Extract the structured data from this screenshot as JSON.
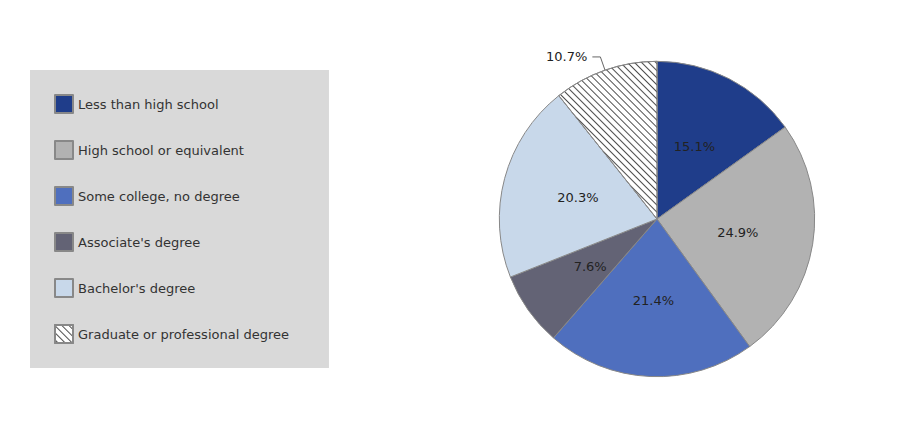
{
  "chart_data": {
    "type": "pie",
    "categories": [
      "Less than high school",
      "High school or equivalent",
      "Some college, no degree",
      "Associate's degree",
      "Bachelor's degree",
      "Graduate or professional degree"
    ],
    "values": [
      15.1,
      24.9,
      21.4,
      7.6,
      20.3,
      10.7
    ],
    "value_labels": [
      "15.1%",
      "24.9%",
      "21.4%",
      "7.6%",
      "20.3%",
      "10.7%"
    ],
    "colors": [
      "#1f3d8a",
      "#b2b2b2",
      "#4f6fbe",
      "#636375",
      "#c8d8ea",
      "#ffffff"
    ],
    "data_labels": true,
    "legend": "left"
  }
}
